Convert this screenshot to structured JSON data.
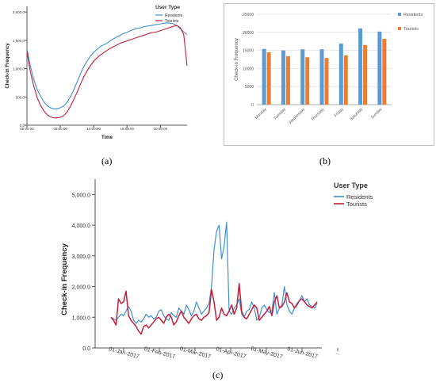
{
  "colors": {
    "residents": "#3f8fd0",
    "tourists": "#c21f3a",
    "bar_residents": "#5b9bd5",
    "bar_tourists": "#ed7d31"
  },
  "labels": {
    "a": "(a)",
    "b": "(b)",
    "c": "(c)"
  },
  "chart_data": [
    {
      "type": "line",
      "xlabel": "Time",
      "ylabel": "Check-in Frequency",
      "xticks": [
        "00:00:00",
        "05:00:00",
        "10:00:00",
        "15:00:00",
        "20:00:00"
      ],
      "xlim": [
        0,
        24
      ],
      "yticks": [
        "0.0",
        "500.0",
        "1,000.0",
        "1,500.0",
        "2,000.0"
      ],
      "ylim": [
        0,
        2100
      ],
      "legend_title": "User Type",
      "legend_position": "top-right",
      "x": [
        0,
        0.5,
        1,
        1.5,
        2,
        2.5,
        3,
        3.5,
        4,
        4.5,
        5,
        5.5,
        6,
        6.5,
        7,
        7.5,
        8,
        8.5,
        9,
        9.5,
        10,
        10.5,
        11,
        11.5,
        12,
        12.5,
        13,
        13.5,
        14,
        14.5,
        15,
        15.5,
        16,
        16.5,
        17,
        17.5,
        18,
        18.5,
        19,
        19.5,
        20,
        20.5,
        21,
        21.5,
        22,
        22.5,
        23,
        23.5,
        24
      ],
      "series": [
        {
          "name": "Residents",
          "values": [
            1350,
            1050,
            820,
            640,
            520,
            420,
            350,
            310,
            290,
            290,
            310,
            340,
            400,
            500,
            620,
            760,
            900,
            1030,
            1130,
            1220,
            1290,
            1340,
            1390,
            1420,
            1450,
            1490,
            1530,
            1560,
            1590,
            1620,
            1640,
            1670,
            1690,
            1710,
            1720,
            1740,
            1750,
            1760,
            1770,
            1780,
            1790,
            1800,
            1810,
            1800,
            1790,
            1760,
            1700,
            1650,
            1600
          ]
        },
        {
          "name": "Tourists",
          "values": [
            1300,
            950,
            700,
            500,
            360,
            260,
            190,
            150,
            130,
            130,
            140,
            170,
            230,
            330,
            450,
            580,
            720,
            850,
            960,
            1050,
            1130,
            1190,
            1240,
            1280,
            1320,
            1360,
            1390,
            1420,
            1450,
            1470,
            1490,
            1510,
            1530,
            1550,
            1570,
            1590,
            1610,
            1630,
            1640,
            1650,
            1670,
            1690,
            1710,
            1730,
            1750,
            1760,
            1720,
            1600,
            1050
          ]
        }
      ]
    },
    {
      "type": "bar",
      "categories": [
        "Monday",
        "Tuesday",
        "Wednesday",
        "Thursday",
        "Friday",
        "Saturday",
        "Sunday"
      ],
      "ylabel": "Check-in Frequency",
      "yticks": [
        "0",
        "5000",
        "10000",
        "15000",
        "20000",
        "25000"
      ],
      "ylim": [
        0,
        25000
      ],
      "legend_position": "top-right",
      "series": [
        {
          "name": "Residents",
          "values": [
            15400,
            15000,
            15300,
            15300,
            16900,
            21100,
            20200
          ]
        },
        {
          "name": "Tourists",
          "values": [
            14500,
            13400,
            13100,
            12900,
            13600,
            16500,
            18200
          ]
        }
      ]
    },
    {
      "type": "line",
      "ylabel": "Check-in Frequency",
      "xticks": [
        "01-Jan-2017",
        "01-Feb-2017",
        "01-Mar-2017",
        "01-Apr-2017",
        "01-May-2017",
        "01-Jun-2017",
        "..."
      ],
      "yticks": [
        "0.0",
        "1,000.0",
        "2,000.0",
        "3,000.0",
        "4,000.0",
        "5,000.0"
      ],
      "ylim": [
        0,
        5500
      ],
      "legend_title": "User Type",
      "legend_position": "top-right",
      "series": [
        {
          "name": "Residents",
          "values": [
            1000,
            950,
            900,
            1000,
            1100,
            1050,
            1200,
            1350,
            1200,
            900,
            800,
            900,
            850,
            950,
            1100,
            1000,
            1050,
            950,
            1000,
            1200,
            1250,
            1050,
            950,
            900,
            1150,
            1050,
            1000,
            1300,
            1200,
            1100,
            1400,
            1250,
            1050,
            1200,
            1500,
            1300,
            1100,
            1200,
            1300,
            1450,
            2000,
            3200,
            3800,
            4000,
            2900,
            3300,
            4100,
            1200,
            1100,
            1300,
            1400,
            1600,
            1100,
            1000,
            1200,
            1250,
            1500,
            1300,
            900,
            1000,
            1300,
            1400,
            1250,
            1150,
            1200,
            1800,
            1100,
            1300,
            1400,
            2000,
            1400,
            1200,
            1100,
            1300,
            1450,
            1550,
            1700,
            1500,
            1600,
            1400,
            1350,
            1300,
            1450
          ]
        },
        {
          "name": "Tourists",
          "values": [
            1000,
            900,
            750,
            1600,
            1450,
            1500,
            1850,
            1050,
            900,
            800,
            700,
            550,
            450,
            700,
            750,
            650,
            750,
            850,
            950,
            1000,
            900,
            800,
            1000,
            1100,
            1000,
            750,
            850,
            1050,
            1200,
            1000,
            900,
            800,
            950,
            1050,
            1100,
            950,
            900,
            1000,
            1050,
            1150,
            1900,
            1500,
            900,
            1000,
            1300,
            1100,
            1050,
            1200,
            1400,
            1100,
            1300,
            2100,
            1200,
            1000,
            950,
            1100,
            1250,
            1400,
            1300,
            900,
            1000,
            1100,
            1200,
            1350,
            1050,
            1500,
            1700,
            1300,
            1350,
            1500,
            1800,
            1500,
            1450,
            1300,
            1400,
            1550,
            1600,
            1500,
            1400,
            1350,
            1300,
            1400,
            1500
          ]
        }
      ]
    }
  ]
}
